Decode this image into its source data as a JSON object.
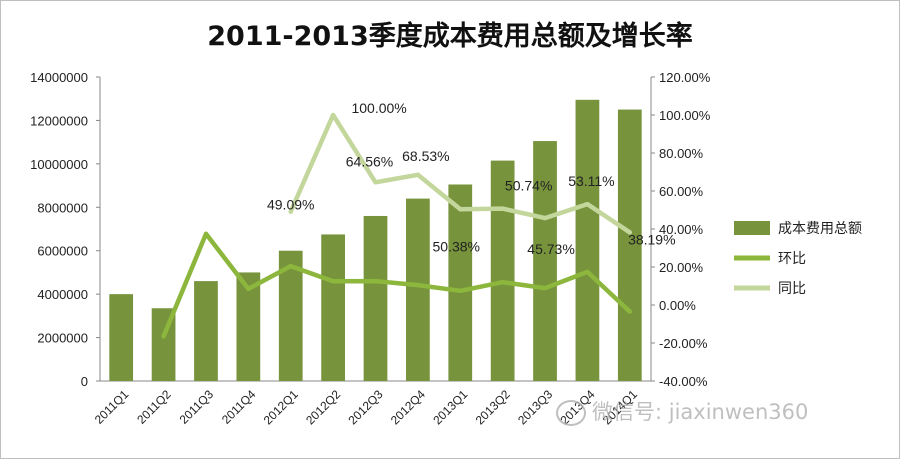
{
  "chart_data": {
    "type": "bar+line",
    "title": "2011-2013季度成本费用总额及增长率",
    "categories": [
      "2011Q1",
      "2011Q2",
      "2011Q3",
      "2011Q4",
      "2012Q1",
      "2012Q2",
      "2012Q3",
      "2012Q4",
      "2013Q1",
      "2013Q2",
      "2013Q3",
      "2013Q4",
      "2014Q1"
    ],
    "bar_series": {
      "name": "成本费用总额",
      "axis": "left",
      "color": "#77933C",
      "values": [
        4000000,
        3350000,
        4600000,
        5000000,
        6000000,
        6750000,
        7600000,
        8400000,
        9050000,
        10150000,
        11050000,
        12950000,
        12500000
      ]
    },
    "line_series": [
      {
        "name": "环比",
        "axis": "right",
        "color": "#8CB63C",
        "values": [
          null,
          -16.5,
          37.5,
          8.5,
          20.5,
          12.5,
          12.6,
          10.5,
          7.5,
          12.0,
          8.9,
          17.4,
          -3.5
        ]
      },
      {
        "name": "同比",
        "axis": "right",
        "color": "#C3D69B",
        "values": [
          null,
          null,
          null,
          null,
          49.09,
          100.0,
          64.56,
          68.53,
          50.38,
          50.74,
          45.73,
          53.11,
          38.19
        ]
      }
    ],
    "data_labels": [
      {
        "series": "同比",
        "index": 4,
        "text": "49.09%"
      },
      {
        "series": "同比",
        "index": 5,
        "text": "100.00%"
      },
      {
        "series": "同比",
        "index": 6,
        "text": "64.56%"
      },
      {
        "series": "同比",
        "index": 7,
        "text": "68.53%"
      },
      {
        "series": "同比",
        "index": 8,
        "text": "50.38%"
      },
      {
        "series": "同比",
        "index": 9,
        "text": "50.74%"
      },
      {
        "series": "同比",
        "index": 10,
        "text": "45.73%"
      },
      {
        "series": "同比",
        "index": 11,
        "text": "53.11%"
      },
      {
        "series": "同比",
        "index": 12,
        "text": "38.19%"
      }
    ],
    "y_left": {
      "min": 0,
      "max": 14000000,
      "step": 2000000,
      "tick_labels": [
        "0",
        "2000000",
        "4000000",
        "6000000",
        "8000000",
        "10000000",
        "12000000",
        "14000000"
      ]
    },
    "y_right": {
      "min": -40,
      "max": 120,
      "step": 20,
      "tick_labels": [
        "-40.00%",
        "-20.00%",
        "0.00%",
        "20.00%",
        "40.00%",
        "60.00%",
        "80.00%",
        "100.00%",
        "120.00%"
      ]
    },
    "legend": {
      "position": "right",
      "items": [
        {
          "label": "成本费用总额",
          "kind": "bar",
          "color": "#77933C"
        },
        {
          "label": "环比",
          "kind": "line",
          "color": "#8CB63C"
        },
        {
          "label": "同比",
          "kind": "line",
          "color": "#C3D69B"
        }
      ]
    }
  },
  "watermark": "微信号: jiaxinwen360"
}
